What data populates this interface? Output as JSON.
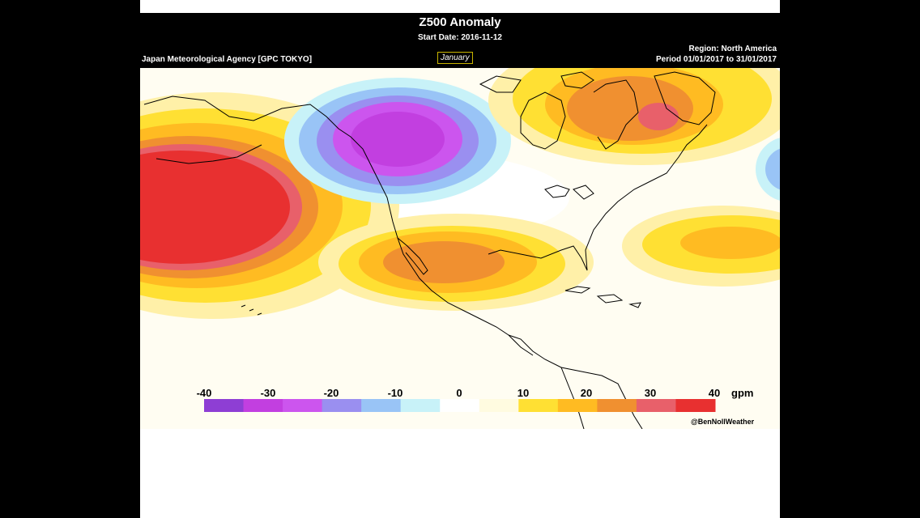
{
  "header": {
    "title": "Z500 Anomaly",
    "start_date": "Start Date: 2016-11-12",
    "agency": "Japan Meteorological Agency [GPC TOKYO]",
    "month": "January",
    "region": "Region: North America",
    "period": "Period 01/01/2017 to 31/01/2017"
  },
  "legend": {
    "ticks": [
      "-40",
      "-30",
      "-20",
      "-10",
      "0",
      "10",
      "20",
      "30",
      "40"
    ],
    "unit": "gpm",
    "colors": [
      "#8e3ed4",
      "#c23fe0",
      "#cc55ee",
      "#9a8ff0",
      "#99c4f6",
      "#c8f2f8",
      "#ffffff",
      "#fffbe0",
      "#ffe033",
      "#ffbb22",
      "#f09030",
      "#e8606a",
      "#e83030"
    ]
  },
  "watermark": "@BenNollWeather",
  "colors": {
    "background_frame": "#000000",
    "ocean_land_base": "#fffdf2",
    "coast": "#000000"
  }
}
